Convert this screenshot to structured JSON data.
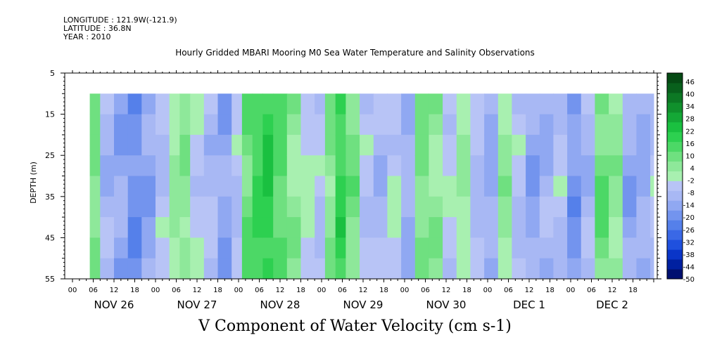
{
  "header": {
    "longitude": "LONGITUDE : 121.9W(-121.9)",
    "latitude": "LATITUDE : 36.8N",
    "year": "YEAR : 2010"
  },
  "title": "Hourly Gridded MBARI Mooring M0 Sea Water Temperature and Salinity Observations",
  "footer": "V Component of Water Velocity (cm s-1)",
  "chart_data": {
    "type": "heatmap",
    "title": "Hourly Gridded MBARI Mooring M0 Sea Water Temperature and Salinity Observations",
    "xlabel": "",
    "ylabel": "DEPTH (m)",
    "variable": "V Component of Water Velocity (cm s-1)",
    "x_hour_range": [
      0,
      168
    ],
    "data_x_range": [
      5,
      168
    ],
    "y_range": [
      5,
      55
    ],
    "data_y_range": [
      10,
      55
    ],
    "y_reversed": true,
    "y_ticks": [
      5,
      15,
      25,
      35,
      45,
      55
    ],
    "y_tick_labels": [
      "5",
      "15",
      "25",
      "35",
      "45",
      "55"
    ],
    "x_tick_labels": [
      "00",
      "06",
      "12",
      "18",
      "00",
      "06",
      "12",
      "18",
      "00",
      "06",
      "12",
      "18",
      "00",
      "06",
      "12",
      "18",
      "00",
      "06",
      "12",
      "18",
      "00",
      "06",
      "12",
      "18",
      "00",
      "06",
      "12",
      "18"
    ],
    "day_labels": [
      "NOV 26",
      "NOV 27",
      "NOV 28",
      "NOV 29",
      "NOV 30",
      "DEC  1",
      "DEC  2"
    ],
    "colorbar": {
      "min": -50,
      "max": 50,
      "labels": [
        "46",
        "40",
        "34",
        "28",
        "22",
        "16",
        "10",
        "4",
        "-2",
        "-8",
        "-14",
        "-20",
        "-26",
        "-32",
        "-38",
        "-44",
        "-50"
      ],
      "colors": [
        "#001070",
        "#0020a0",
        "#0a35c8",
        "#1f50de",
        "#3a68e6",
        "#5580ea",
        "#7394ee",
        "#90a8f2",
        "#a8b8f4",
        "#b8c4f6",
        "#a8f0b0",
        "#8ee89a",
        "#6fe080",
        "#4cd866",
        "#2dd050",
        "#1ac040",
        "#14a836",
        "#10902c",
        "#0c7824",
        "#08601c",
        "#054a14"
      ]
    },
    "columns_hourly_mean": [
      {
        "hour": 5,
        "v": 8
      },
      {
        "hour": 8,
        "v": -10
      },
      {
        "hour": 12,
        "v": -14
      },
      {
        "hour": 16,
        "v": -20
      },
      {
        "hour": 20,
        "v": -14
      },
      {
        "hour": 24,
        "v": -6
      },
      {
        "hour": 28,
        "v": 2
      },
      {
        "hour": 31,
        "v": 6
      },
      {
        "hour": 34,
        "v": -4
      },
      {
        "hour": 38,
        "v": -8
      },
      {
        "hour": 42,
        "v": -14
      },
      {
        "hour": 46,
        "v": -6
      },
      {
        "hour": 49,
        "v": 10
      },
      {
        "hour": 52,
        "v": 16
      },
      {
        "hour": 55,
        "v": 20
      },
      {
        "hour": 58,
        "v": 12
      },
      {
        "hour": 62,
        "v": 4
      },
      {
        "hour": 66,
        "v": -2
      },
      {
        "hour": 70,
        "v": -6
      },
      {
        "hour": 73,
        "v": 6
      },
      {
        "hour": 76,
        "v": 18
      },
      {
        "hour": 79,
        "v": 8
      },
      {
        "hour": 83,
        "v": -6
      },
      {
        "hour": 87,
        "v": -10
      },
      {
        "hour": 91,
        "v": -4
      },
      {
        "hour": 95,
        "v": -12
      },
      {
        "hour": 99,
        "v": 8
      },
      {
        "hour": 103,
        "v": 4
      },
      {
        "hour": 107,
        "v": -4
      },
      {
        "hour": 111,
        "v": 2
      },
      {
        "hour": 115,
        "v": -8
      },
      {
        "hour": 119,
        "v": -12
      },
      {
        "hour": 123,
        "v": 4
      },
      {
        "hour": 127,
        "v": -6
      },
      {
        "hour": 131,
        "v": -14
      },
      {
        "hour": 135,
        "v": -10
      },
      {
        "hour": 139,
        "v": -6
      },
      {
        "hour": 143,
        "v": -18
      },
      {
        "hour": 147,
        "v": -10
      },
      {
        "hour": 151,
        "v": 10
      },
      {
        "hour": 155,
        "v": 4
      },
      {
        "hour": 159,
        "v": -14
      },
      {
        "hour": 163,
        "v": -12
      },
      {
        "hour": 167,
        "v": -6
      }
    ]
  }
}
